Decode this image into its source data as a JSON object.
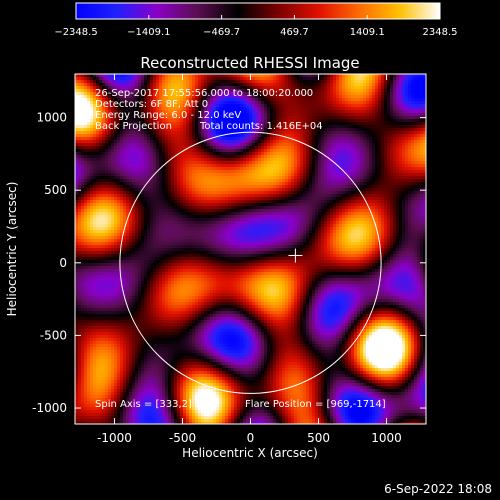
{
  "chart_data": {
    "type": "heatmap",
    "title": "Reconstructed RHESSI Image",
    "xlabel": "Heliocentric X (arcsec)",
    "ylabel": "Heliocentric Y (arcsec)",
    "xlim": [
      -1290,
      1290
    ],
    "ylim": [
      -1110,
      1300
    ],
    "xticks": [
      -1000,
      -500,
      0,
      500,
      1000
    ],
    "yticks": [
      -1000,
      -500,
      0,
      500,
      1000
    ],
    "colorbar": {
      "min": -2348.5,
      "max": 2348.5,
      "tick_labels": [
        "−2348.5",
        "−1409.1",
        "−469.7",
        "469.7",
        "1409.1",
        "2348.5"
      ],
      "colormap": [
        "#0000ff",
        "#2020ff",
        "#8a00c8",
        "#5a0e50",
        "#000000",
        "#7a0000",
        "#e01000",
        "#ff6a00",
        "#ffc000",
        "#ffffff"
      ]
    },
    "solar_disk_radius_arcsec": 960,
    "disk_center": [
      0,
      0
    ],
    "marker": {
      "x": 330,
      "y": 50,
      "symbol": "+"
    },
    "annotations": {
      "time": "26-Sep-2017 17:55:56.000 to 18:00:20.000",
      "detectors": "Detectors: 6F 8F, Att 0",
      "energy": "Energy Range: 6.0 - 12.0 keV",
      "method": "Back Projection",
      "counts": "Total counts: 1.416E+04",
      "spin_axis": "Spin Axis = [333,2]",
      "flare_position": "Flare Position = [969,-1714]"
    },
    "footer_date": "6-Sep-2022 18:08"
  }
}
